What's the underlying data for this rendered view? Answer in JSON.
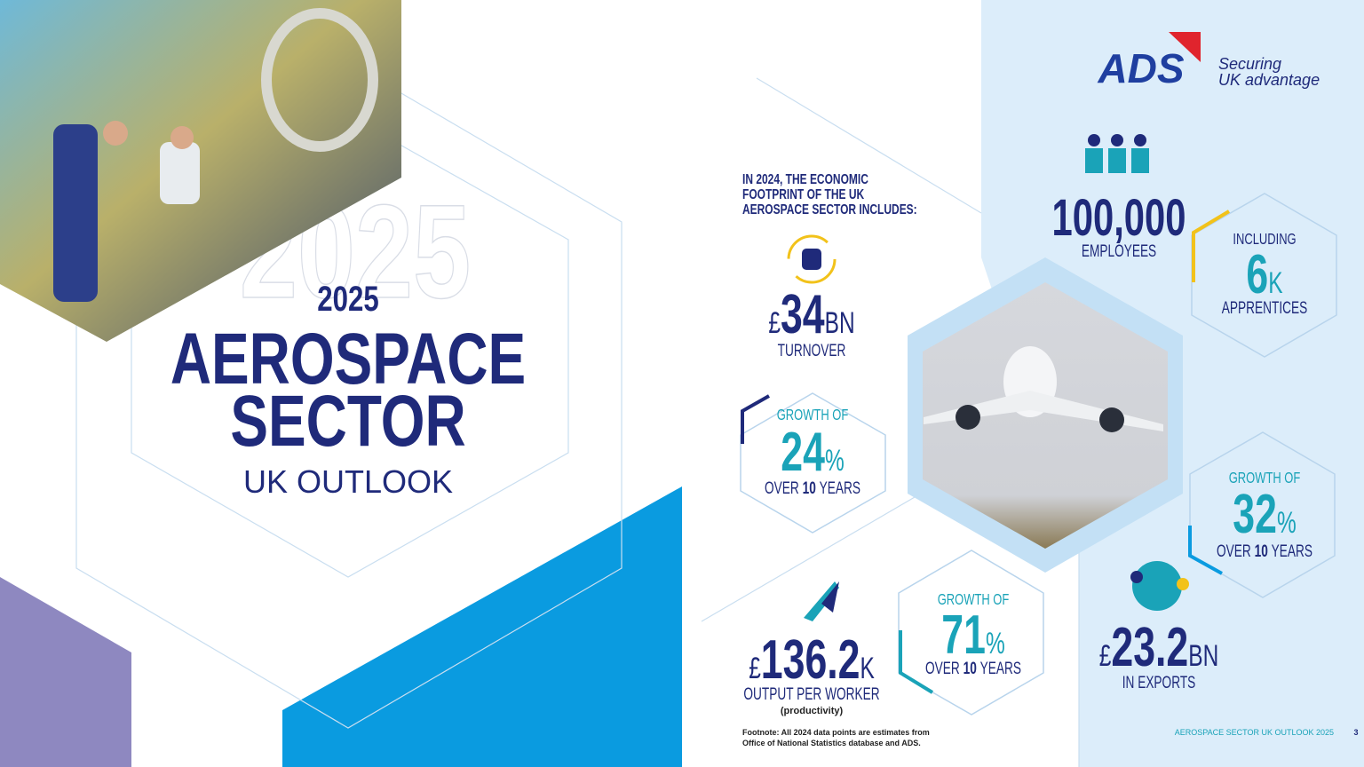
{
  "cover": {
    "watermark": "2025",
    "year": "2025",
    "title_line1": "AEROSPACE",
    "title_line2": "SECTOR",
    "subtitle": "UK OUTLOOK"
  },
  "logo": {
    "name": "ADS",
    "tagline_line1": "Securing",
    "tagline_line2": "UK advantage"
  },
  "intro": {
    "line1": "IN 2024, THE ECONOMIC",
    "line2": "FOOTPRINT OF THE UK",
    "line3": "AEROSPACE SECTOR INCLUDES:"
  },
  "stats": {
    "turnover": {
      "currency": "£",
      "value": "34",
      "unit": "BN",
      "label": "TURNOVER"
    },
    "turnover_growth": {
      "lead": "GROWTH OF",
      "value": "24",
      "unit": "%",
      "over": "OVER",
      "years_value": "10",
      "years": "YEARS"
    },
    "output": {
      "currency": "£",
      "value": "136.2",
      "unit": "K",
      "label": "OUTPUT PER WORKER",
      "note": "(productivity)"
    },
    "output_growth": {
      "lead": "GROWTH OF",
      "value": "71",
      "unit": "%",
      "over": "OVER",
      "years_value": "10",
      "years": "YEARS"
    },
    "employees": {
      "value": "100,000",
      "label": "EMPLOYEES"
    },
    "apprentices": {
      "lead": "INCLUDING",
      "value": "6",
      "unit": "K",
      "label": "APPRENTICES"
    },
    "exports_growth": {
      "lead": "GROWTH OF",
      "value": "32",
      "unit": "%",
      "over": "OVER",
      "years_value": "10",
      "years": "YEARS"
    },
    "exports": {
      "currency": "£",
      "value": "23.2",
      "unit": "BN",
      "label": "IN EXPORTS"
    }
  },
  "footnote": {
    "line1": "Footnote: All 2024 data points are estimates from",
    "line2": "Office of National Statistics database and ADS."
  },
  "footer": {
    "title": "AEROSPACE SECTOR UK OUTLOOK 2025",
    "page": "3"
  }
}
